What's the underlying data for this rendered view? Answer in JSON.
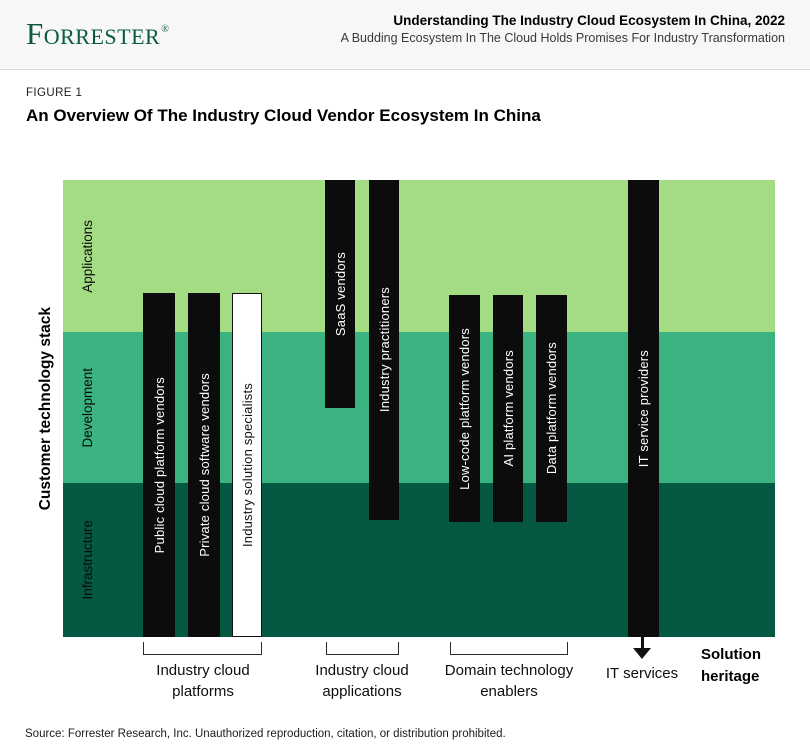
{
  "header": {
    "logo": "Forrester",
    "trademark": "®",
    "title": "Understanding The Industry Cloud Ecosystem In China, 2022",
    "subtitle": "A Budding Ecosystem In The Cloud Holds Promises For Industry Transformation"
  },
  "figure": {
    "label": "FIGURE 1",
    "title": "An Overview Of The Industry Cloud Vendor Ecosystem In China"
  },
  "diagram": {
    "y_axis_label": "Customer technology stack",
    "x_axis_label": "Solution heritage",
    "bands": [
      {
        "name": "Applications",
        "color": "#A3DC82"
      },
      {
        "name": "Development",
        "color": "#3BB482"
      },
      {
        "name": "Infrastructure",
        "color": "#055842"
      }
    ],
    "bars": [
      {
        "label": "Public cloud platform vendors",
        "group": "Industry cloud platforms",
        "style": "solid-black",
        "stack_span": "upper applications to bottom of infrastructure"
      },
      {
        "label": "Private cloud software vendors",
        "group": "Industry cloud platforms",
        "style": "solid-black",
        "stack_span": "upper applications to bottom of infrastructure"
      },
      {
        "label": "Industry solution specialists",
        "group": "Industry cloud platforms",
        "style": "white-outlined",
        "stack_span": "upper applications to bottom of infrastructure"
      },
      {
        "label": "SaaS vendors",
        "group": "Industry cloud applications",
        "style": "solid-black",
        "stack_span": "top of applications to mid-development"
      },
      {
        "label": "Industry practitioners",
        "group": "Industry cloud applications",
        "style": "solid-black",
        "stack_span": "top of applications to top of infrastructure"
      },
      {
        "label": "Low-code platform vendors",
        "group": "Domain technology enablers",
        "style": "solid-black",
        "stack_span": "lower applications to top of infrastructure"
      },
      {
        "label": "AI platform vendors",
        "group": "Domain technology enablers",
        "style": "solid-black",
        "stack_span": "lower applications to top of infrastructure"
      },
      {
        "label": "Data platform vendors",
        "group": "Domain technology enablers",
        "style": "solid-black",
        "stack_span": "lower applications to top of infrastructure"
      },
      {
        "label": "IT service providers",
        "group": "IT services",
        "style": "solid-black",
        "stack_span": "full stack, applications to infrastructure"
      }
    ],
    "groups": [
      {
        "label": "Industry cloud platforms",
        "marker": "bracket"
      },
      {
        "label": "Industry cloud applications",
        "marker": "bracket"
      },
      {
        "label": "Domain technology enablers",
        "marker": "bracket"
      },
      {
        "label": "IT services",
        "marker": "down-arrow"
      }
    ]
  },
  "source": "Source: Forrester Research, Inc. Unauthorized reproduction, citation, or distribution prohibited."
}
